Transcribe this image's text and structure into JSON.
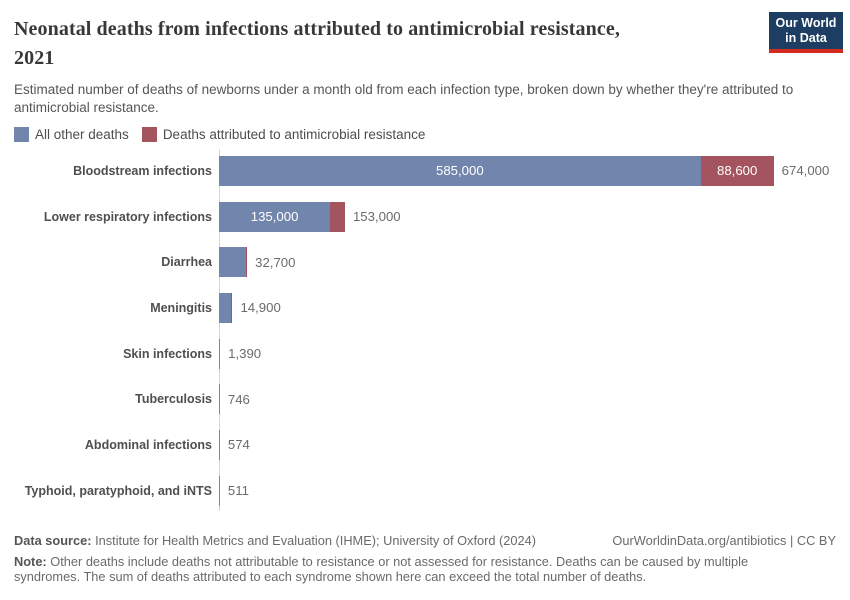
{
  "header": {
    "title_lines": [
      "Neonatal deaths from infections attributed to antimicrobial resistance,",
      "2021"
    ],
    "subtitle": "Estimated number of deaths of newborns under a month old from each infection type, broken down by whether they're attributed to antimicrobial resistance.",
    "logo": {
      "line1": "Our World",
      "line2": "in Data"
    }
  },
  "legend": [
    {
      "label": "All other deaths",
      "color": "#7286ad"
    },
    {
      "label": "Deaths attributed to antimicrobial resistance",
      "color": "#a4545e"
    }
  ],
  "chart_data": {
    "type": "bar",
    "orientation": "horizontal",
    "title": "Neonatal deaths from infections attributed to antimicrobial resistance, 2021",
    "xlabel": "Estimated number of deaths",
    "x_axis_shown": false,
    "grid": false,
    "legend_position": "top",
    "x_max_value": 674000,
    "series_names": [
      "All other deaths",
      "Deaths attributed to antimicrobial resistance"
    ],
    "rows": [
      {
        "label": "Bloodstream infections",
        "other_value": 585000,
        "amr_value": 88600,
        "amr_sliver": false,
        "other_label": "585,000",
        "amr_label": "88,600",
        "total_label": "674,000"
      },
      {
        "label": "Lower respiratory infections",
        "other_value": 135000,
        "amr_value": 18000,
        "amr_sliver": false,
        "other_label": "135,000",
        "amr_label": "",
        "total_label": "153,000"
      },
      {
        "label": "Diarrhea",
        "other_value": 32700,
        "amr_value": null,
        "amr_sliver": true,
        "other_label": "",
        "amr_label": "",
        "total_label": "32,700"
      },
      {
        "label": "Meningitis",
        "other_value": 14900,
        "amr_value": null,
        "amr_sliver": true,
        "other_label": "",
        "amr_label": "",
        "total_label": "14,900"
      },
      {
        "label": "Skin infections",
        "other_value": 1390,
        "amr_value": null,
        "amr_sliver": false,
        "other_label": "",
        "amr_label": "",
        "total_label": "1,390"
      },
      {
        "label": "Tuberculosis",
        "other_value": 746,
        "amr_value": null,
        "amr_sliver": false,
        "other_label": "",
        "amr_label": "",
        "total_label": "746"
      },
      {
        "label": "Abdominal infections",
        "other_value": 574,
        "amr_value": null,
        "amr_sliver": false,
        "other_label": "",
        "amr_label": "",
        "total_label": "574"
      },
      {
        "label": "Typhoid, paratyphoid, and iNTS",
        "other_value": 511,
        "amr_value": null,
        "amr_sliver": false,
        "other_label": "",
        "amr_label": "",
        "total_label": "511"
      }
    ]
  },
  "footer": {
    "datasource_label": "Data source:",
    "datasource_text": " Institute for Health Metrics and Evaluation (IHME); University of Oxford (2024)",
    "license": "OurWorldinData.org/antibiotics | CC BY",
    "note_label": "Note:",
    "note_text": " Other deaths include deaths not attributable to resistance or not assessed for resistance. Deaths can be caused by multiple syndromes. The sum of deaths attributed to each syndrome shown here can exceed the total number of deaths."
  },
  "colors": {
    "other_deaths": "#7286ad",
    "amr_deaths": "#a4545e",
    "logo_bg": "#1d3d63",
    "logo_stripe": "#d42b21",
    "axis_line": "#d6d6d6"
  }
}
